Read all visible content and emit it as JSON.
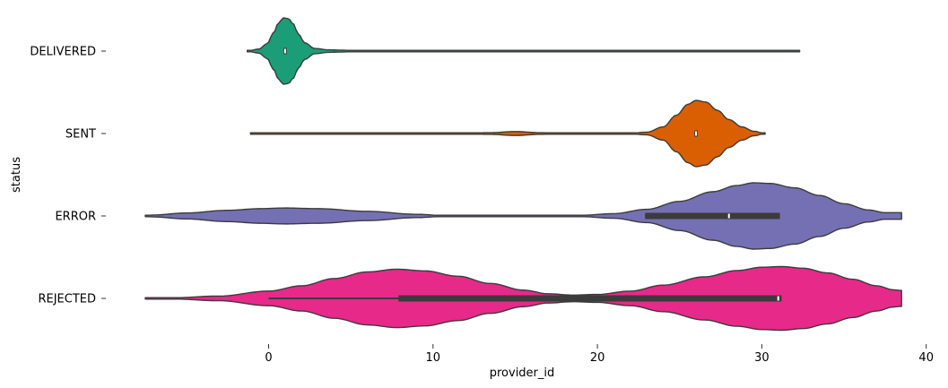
{
  "chart_data": {
    "type": "violin",
    "orientation": "horizontal",
    "title": "",
    "xlabel": "provider_id",
    "ylabel": "status",
    "xlim": [
      -7.5,
      40
    ],
    "xticks": [
      0,
      10,
      20,
      30,
      40
    ],
    "grid": false,
    "categories": [
      "DELIVERED",
      "SENT",
      "ERROR",
      "REJECTED"
    ],
    "violins": [
      {
        "category": "DELIVERED",
        "color": "#1b9e77",
        "range": [
          -1.3,
          32.3
        ],
        "density": [
          [
            -1.3,
            0.0
          ],
          [
            -0.6,
            0.06
          ],
          [
            -0.1,
            0.22
          ],
          [
            0.3,
            0.55
          ],
          [
            0.6,
            0.85
          ],
          [
            0.9,
            1.0
          ],
          [
            1.2,
            0.98
          ],
          [
            1.5,
            0.82
          ],
          [
            1.8,
            0.52
          ],
          [
            2.2,
            0.25
          ],
          [
            2.8,
            0.08
          ],
          [
            3.6,
            0.04
          ],
          [
            4.3,
            0.03
          ],
          [
            5.2,
            0.015
          ],
          [
            6.0,
            0.01
          ],
          [
            8.0,
            0.01
          ],
          [
            9.0,
            0.02
          ],
          [
            10.0,
            0.01
          ],
          [
            12.0,
            0.005
          ],
          [
            20.0,
            0.005
          ],
          [
            28.0,
            0.005
          ],
          [
            30.0,
            0.01
          ],
          [
            31.0,
            0.02
          ],
          [
            32.3,
            0.0
          ]
        ],
        "box": {
          "q1": 0.9,
          "q3": 1.1,
          "median": 1.0,
          "whisker_low": 0.9,
          "whisker_high": 1.1
        }
      },
      {
        "category": "SENT",
        "color": "#d95f02",
        "range": [
          -1.1,
          30.2
        ],
        "density": [
          [
            -1.1,
            0.0
          ],
          [
            1.0,
            0.005
          ],
          [
            4.0,
            0.015
          ],
          [
            6.0,
            0.005
          ],
          [
            9.0,
            0.02
          ],
          [
            11.0,
            0.005
          ],
          [
            13.5,
            0.025
          ],
          [
            15.0,
            0.06
          ],
          [
            16.5,
            0.025
          ],
          [
            18.0,
            0.005
          ],
          [
            22.0,
            0.01
          ],
          [
            23.0,
            0.04
          ],
          [
            24.0,
            0.2
          ],
          [
            24.8,
            0.55
          ],
          [
            25.5,
            0.88
          ],
          [
            26.0,
            1.0
          ],
          [
            26.6,
            0.95
          ],
          [
            27.3,
            0.7
          ],
          [
            28.0,
            0.42
          ],
          [
            28.8,
            0.2
          ],
          [
            29.5,
            0.07
          ],
          [
            30.2,
            0.0
          ]
        ],
        "box": {
          "q1": 25.9,
          "q3": 26.1,
          "median": 26.0,
          "whisker_low": 25.9,
          "whisker_high": 26.1
        }
      },
      {
        "category": "ERROR",
        "color": "#7570b3",
        "range": [
          -7.5,
          38.5
        ],
        "density": [
          [
            -7.5,
            0.0
          ],
          [
            -7.0,
            0.03
          ],
          [
            -5.0,
            0.09
          ],
          [
            -2.5,
            0.17
          ],
          [
            -0.5,
            0.22
          ],
          [
            1.0,
            0.24
          ],
          [
            3.0,
            0.22
          ],
          [
            6.0,
            0.14
          ],
          [
            9.0,
            0.05
          ],
          [
            11.0,
            0.0
          ],
          [
            13.0,
            0.0
          ],
          [
            15.0,
            0.0
          ],
          [
            17.5,
            0.0
          ],
          [
            19.0,
            0.02
          ],
          [
            21.0,
            0.07
          ],
          [
            23.0,
            0.2
          ],
          [
            25.0,
            0.44
          ],
          [
            27.0,
            0.73
          ],
          [
            28.5,
            0.92
          ],
          [
            29.5,
            1.0
          ],
          [
            30.5,
            0.98
          ],
          [
            32.0,
            0.85
          ],
          [
            33.5,
            0.62
          ],
          [
            35.0,
            0.37
          ],
          [
            36.5,
            0.18
          ],
          [
            37.5,
            0.1
          ],
          [
            38.5,
            0.1
          ]
        ],
        "box": {
          "q1": 22.9,
          "q3": 31.1,
          "median": 28.0,
          "whisker_low": 22.9,
          "whisker_high": 31.1
        }
      },
      {
        "category": "REJECTED",
        "color": "#e7298a",
        "range": [
          -7.5,
          38.5
        ],
        "density": [
          [
            -7.5,
            0.0
          ],
          [
            -6.0,
            0.015
          ],
          [
            -3.0,
            0.07
          ],
          [
            0.0,
            0.22
          ],
          [
            2.0,
            0.38
          ],
          [
            4.0,
            0.6
          ],
          [
            6.0,
            0.8
          ],
          [
            7.8,
            0.88
          ],
          [
            9.5,
            0.83
          ],
          [
            11.5,
            0.67
          ],
          [
            13.5,
            0.45
          ],
          [
            15.5,
            0.25
          ],
          [
            17.0,
            0.14
          ],
          [
            18.5,
            0.1
          ],
          [
            20.0,
            0.12
          ],
          [
            22.0,
            0.22
          ],
          [
            24.0,
            0.4
          ],
          [
            26.5,
            0.65
          ],
          [
            28.5,
            0.84
          ],
          [
            30.0,
            0.94
          ],
          [
            31.2,
            0.96
          ],
          [
            32.5,
            0.91
          ],
          [
            34.0,
            0.77
          ],
          [
            35.5,
            0.58
          ],
          [
            37.0,
            0.38
          ],
          [
            38.0,
            0.26
          ],
          [
            38.5,
            0.24
          ]
        ],
        "box": {
          "q1": 7.9,
          "q3": 31.2,
          "median": 31.0,
          "whisker_low": 0.0,
          "whisker_high": 31.2
        }
      }
    ]
  }
}
